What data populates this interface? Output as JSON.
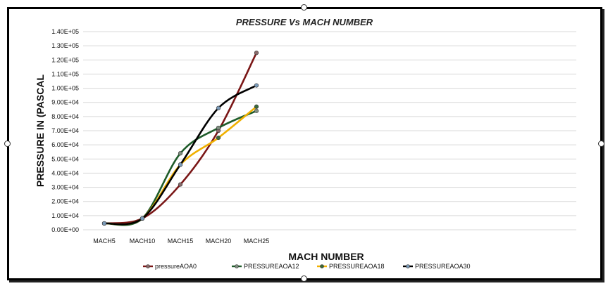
{
  "chart_data": {
    "type": "line",
    "title": "PRESSURE Vs MACH NUMBER",
    "xlabel": "MACH NUMBER",
    "ylabel": "PRESSURE IN (PASCAL",
    "categories": [
      "MACH5",
      "MACH10",
      "MACH15",
      "MACH20",
      "MACH25"
    ],
    "ylim": [
      0,
      140000
    ],
    "ytick_step": 10000,
    "ytick_labels": [
      "0.00E+00",
      "1.00E+04",
      "2.00E+04",
      "3.00E+04",
      "4.00E+04",
      "5.00E+04",
      "6.00E+04",
      "7.00E+04",
      "8.00E+04",
      "9.00E+04",
      "1.00E+05",
      "1.10E+05",
      "1.20E+05",
      "1.30E+05",
      "1.40E+05"
    ],
    "grid": true,
    "legend_position": "bottom",
    "series": [
      {
        "name": "pressureAOA0",
        "color": "#7a1616",
        "marker_color": "#8a6a6a",
        "values": [
          4500,
          8000,
          32000,
          70000,
          125000
        ]
      },
      {
        "name": "PRESSUREAOA12",
        "color": "#1e5c2a",
        "marker_color": "#7f8f80",
        "values": [
          4500,
          8000,
          54000,
          72000,
          84000
        ]
      },
      {
        "name": "PRESSUREAOA18",
        "color": "#f0b000",
        "marker_color": "#3a6a3a",
        "values": [
          4500,
          8000,
          46000,
          65000,
          87000
        ]
      },
      {
        "name": "PRESSUREAOA30",
        "color": "#000000",
        "marker_color": "#7a9ab8",
        "values": [
          4500,
          8000,
          46000,
          86000,
          102000
        ]
      }
    ]
  }
}
